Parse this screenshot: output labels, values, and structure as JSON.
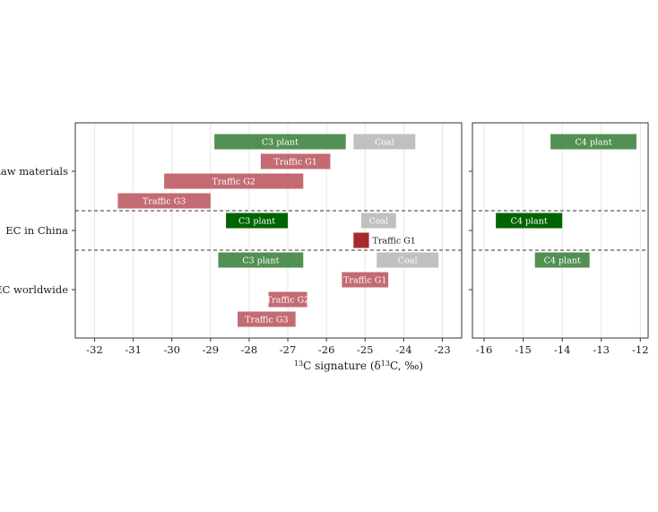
{
  "chart_data": {
    "type": "range_bar",
    "xlabel": {
      "pre_sup": "13",
      "main": "C signature (δ",
      "mid_sup": "13",
      "post": "C, ‰)"
    },
    "categories": [
      "Raw materials",
      "EC in China",
      "EC worldwide"
    ],
    "panels": [
      {
        "id": "left",
        "xlim": [
          -32.5,
          -22.5
        ],
        "ticks": [
          -32,
          -31,
          -30,
          -29,
          -28,
          -27,
          -26,
          -25,
          -24,
          -23
        ],
        "tick_labels": [
          "-32",
          "-31",
          "-30",
          "-29",
          "-28",
          "-27",
          "-26",
          "-25",
          "-24",
          "-23"
        ]
      },
      {
        "id": "right",
        "xlim": [
          -16.3,
          -11.8
        ],
        "ticks": [
          -16,
          -15,
          -14,
          -13,
          -12
        ],
        "tick_labels": [
          "-16",
          "-15",
          "-14",
          "-13",
          "-12"
        ]
      }
    ],
    "colors": {
      "green": "#4a8a4a",
      "dark_green": "#006400",
      "coal": "#bdbdbd",
      "traffic": "#c0636b",
      "traffic_dark": "#a52a2a",
      "grid": "#e0e0e0",
      "border": "#333333"
    },
    "bars": [
      {
        "panel": 0,
        "category": "Raw materials",
        "label": "C3 plant",
        "start": -28.9,
        "end": -25.5,
        "color": "green"
      },
      {
        "panel": 0,
        "category": "Raw materials",
        "label": "Coal",
        "start": -25.3,
        "end": -23.7,
        "color": "coal"
      },
      {
        "panel": 0,
        "category": "Raw materials",
        "label": "Traffic G1",
        "start": -27.7,
        "end": -25.9,
        "color": "traffic"
      },
      {
        "panel": 0,
        "category": "Raw materials",
        "label": "Traffic G2",
        "start": -30.2,
        "end": -26.6,
        "color": "traffic"
      },
      {
        "panel": 0,
        "category": "Raw materials",
        "label": "Traffic G3",
        "start": -31.4,
        "end": -29.0,
        "color": "traffic"
      },
      {
        "panel": 0,
        "category": "EC in China",
        "label": "C3 plant",
        "start": -28.6,
        "end": -27.0,
        "color": "dark_green"
      },
      {
        "panel": 0,
        "category": "EC in China",
        "label": "Coal",
        "start": -25.1,
        "end": -24.2,
        "color": "coal"
      },
      {
        "panel": 0,
        "category": "EC in China",
        "label": "Traffic G1",
        "start": -25.3,
        "end": -24.9,
        "color": "traffic_dark",
        "label_outside": true
      },
      {
        "panel": 0,
        "category": "EC worldwide",
        "label": "C3 plant",
        "start": -28.8,
        "end": -26.6,
        "color": "green"
      },
      {
        "panel": 0,
        "category": "EC worldwide",
        "label": "Coal",
        "start": -24.7,
        "end": -23.1,
        "color": "coal"
      },
      {
        "panel": 0,
        "category": "EC worldwide",
        "label": "Traffic G1",
        "start": -25.6,
        "end": -24.4,
        "color": "traffic"
      },
      {
        "panel": 0,
        "category": "EC worldwide",
        "label": "Traffic G2",
        "start": -27.5,
        "end": -26.5,
        "color": "traffic"
      },
      {
        "panel": 0,
        "category": "EC worldwide",
        "label": "Traffic G3",
        "start": -28.3,
        "end": -26.8,
        "color": "traffic"
      },
      {
        "panel": 1,
        "category": "Raw materials",
        "label": "C4 plant",
        "start": -14.3,
        "end": -12.1,
        "color": "green"
      },
      {
        "panel": 1,
        "category": "EC in China",
        "label": "C4 plant",
        "start": -15.7,
        "end": -14.0,
        "color": "dark_green"
      },
      {
        "panel": 1,
        "category": "EC worldwide",
        "label": "C4 plant",
        "start": -14.7,
        "end": -13.3,
        "color": "green"
      }
    ]
  }
}
